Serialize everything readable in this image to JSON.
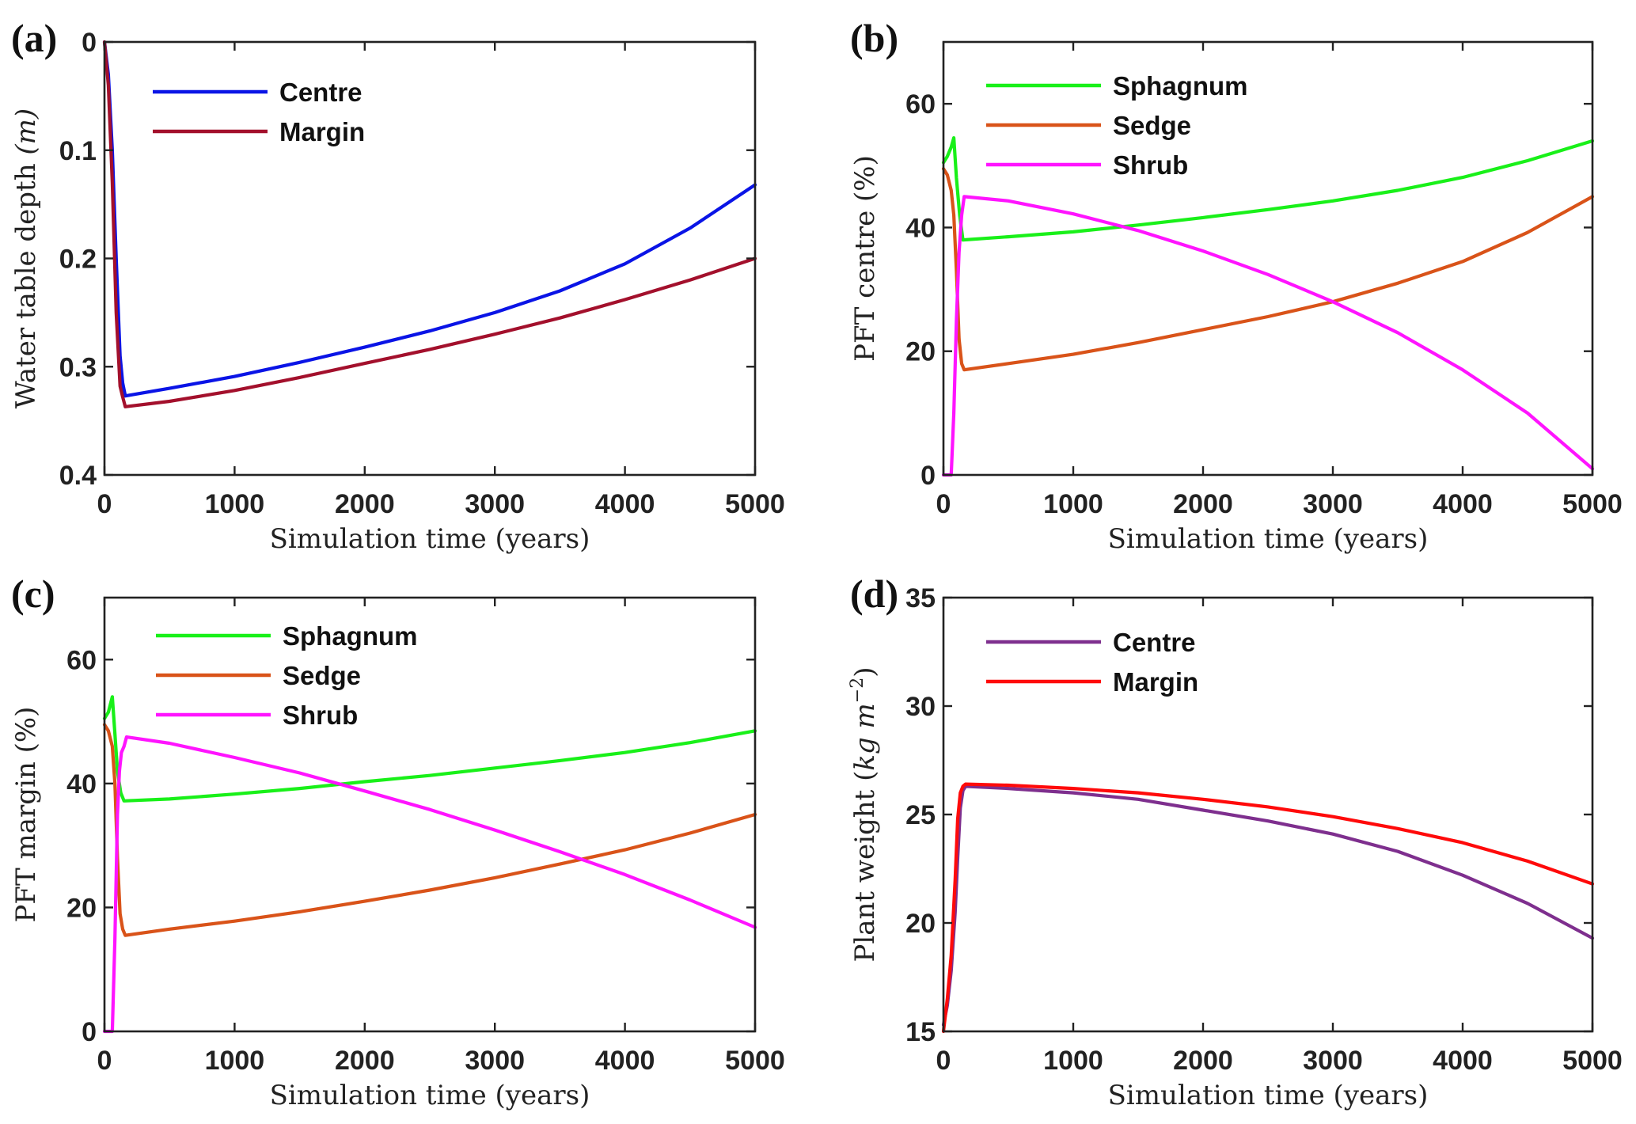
{
  "chart_data": [
    {
      "id": "a",
      "type": "line",
      "panel_label": "(a)",
      "title": "",
      "xlabel": "Simulation time (years)",
      "ylabel": "Water table depth (m)",
      "ylabel_parts": {
        "main": "Water table depth ",
        "unit": "(m)"
      },
      "xlim": [
        0,
        5000
      ],
      "ylim": [
        0,
        0.4
      ],
      "y_reversed": true,
      "xticks": [
        0,
        1000,
        2000,
        3000,
        4000,
        5000
      ],
      "xtick_labels": [
        "0",
        "1000",
        "2000",
        "3000",
        "4000",
        "5000"
      ],
      "yticks": [
        0,
        0.1,
        0.2,
        0.3,
        0.4
      ],
      "ytick_labels": [
        "0",
        "0.1",
        "0.2",
        "0.3",
        "0.4"
      ],
      "grid": false,
      "legend_position": "top-left",
      "series": [
        {
          "name": "Centre",
          "color": "#0a14e6",
          "x": [
            0,
            30,
            60,
            90,
            120,
            140,
            160,
            500,
            1000,
            1500,
            2000,
            2500,
            3000,
            3500,
            4000,
            4500,
            5000
          ],
          "y": [
            0,
            0.03,
            0.1,
            0.2,
            0.29,
            0.315,
            0.327,
            0.32,
            0.309,
            0.296,
            0.282,
            0.267,
            0.25,
            0.23,
            0.205,
            0.172,
            0.132
          ]
        },
        {
          "name": "Margin",
          "color": "#a3102c",
          "x": [
            0,
            30,
            60,
            90,
            120,
            140,
            160,
            500,
            1000,
            1500,
            2000,
            2500,
            3000,
            3500,
            4000,
            4500,
            5000
          ],
          "y": [
            0,
            0.04,
            0.13,
            0.25,
            0.318,
            0.328,
            0.337,
            0.332,
            0.322,
            0.31,
            0.297,
            0.284,
            0.27,
            0.255,
            0.238,
            0.22,
            0.2
          ]
        }
      ]
    },
    {
      "id": "b",
      "type": "line",
      "panel_label": "(b)",
      "title": "",
      "xlabel": "Simulation time (years)",
      "ylabel": "PFT centre (%)",
      "xlim": [
        0,
        5000
      ],
      "ylim": [
        0,
        70
      ],
      "xticks": [
        0,
        1000,
        2000,
        3000,
        4000,
        5000
      ],
      "xtick_labels": [
        "0",
        "1000",
        "2000",
        "3000",
        "4000",
        "5000"
      ],
      "yticks": [
        0,
        20,
        40,
        60
      ],
      "ytick_labels": [
        "0",
        "20",
        "40",
        "60"
      ],
      "grid": false,
      "legend_position": "top-left",
      "series": [
        {
          "name": "Sphagnum",
          "color": "#19f019",
          "x": [
            0,
            30,
            60,
            80,
            100,
            125,
            150,
            500,
            1000,
            1500,
            2000,
            2500,
            3000,
            3500,
            4000,
            4500,
            5000
          ],
          "y": [
            50.5,
            51.5,
            53,
            54.5,
            48,
            42,
            38,
            38.5,
            39.3,
            40.4,
            41.6,
            42.9,
            44.3,
            46,
            48.1,
            50.8,
            54
          ]
        },
        {
          "name": "Sedge",
          "color": "#d95319",
          "x": [
            0,
            30,
            60,
            80,
            100,
            120,
            140,
            160,
            500,
            1000,
            1500,
            2000,
            2500,
            3000,
            3500,
            4000,
            4500,
            5000
          ],
          "y": [
            49.5,
            48.5,
            46,
            42,
            33,
            22,
            18,
            17,
            18,
            19.5,
            21.4,
            23.5,
            25.6,
            28,
            31,
            34.5,
            39.2,
            45
          ]
        },
        {
          "name": "Shrub",
          "color": "#ff14ff",
          "x": [
            0,
            60,
            80,
            100,
            120,
            140,
            160,
            500,
            1000,
            1500,
            2000,
            2500,
            3000,
            3500,
            4000,
            4500,
            5000
          ],
          "y": [
            0,
            0,
            10,
            25,
            36,
            42,
            45,
            44.3,
            42.2,
            39.5,
            36.2,
            32.4,
            28,
            23,
            17,
            10,
            1
          ]
        }
      ]
    },
    {
      "id": "c",
      "type": "line",
      "panel_label": "(c)",
      "title": "",
      "xlabel": "Simulation time (years)",
      "ylabel": "PFT margin (%)",
      "xlim": [
        0,
        5000
      ],
      "ylim": [
        0,
        70
      ],
      "xticks": [
        0,
        1000,
        2000,
        3000,
        4000,
        5000
      ],
      "xtick_labels": [
        "0",
        "1000",
        "2000",
        "3000",
        "4000",
        "5000"
      ],
      "yticks": [
        0,
        20,
        40,
        60
      ],
      "ytick_labels": [
        "0",
        "20",
        "40",
        "60"
      ],
      "grid": false,
      "legend_position": "top-left",
      "series": [
        {
          "name": "Sphagnum",
          "color": "#19f019",
          "x": [
            0,
            30,
            60,
            80,
            100,
            125,
            150,
            500,
            1000,
            1500,
            2000,
            2500,
            3000,
            3500,
            4000,
            4500,
            5000
          ],
          "y": [
            50.5,
            51.5,
            54,
            48,
            42,
            38.5,
            37.2,
            37.5,
            38.3,
            39.2,
            40.3,
            41.3,
            42.5,
            43.7,
            45,
            46.6,
            48.5
          ]
        },
        {
          "name": "Sedge",
          "color": "#d95319",
          "x": [
            0,
            30,
            60,
            80,
            100,
            120,
            140,
            160,
            500,
            1000,
            1500,
            2000,
            2500,
            3000,
            3500,
            4000,
            4500,
            5000
          ],
          "y": [
            49.5,
            48.5,
            46,
            40,
            28,
            19,
            16.5,
            15.5,
            16.5,
            17.8,
            19.3,
            21,
            22.8,
            24.8,
            27,
            29.3,
            32,
            35
          ]
        },
        {
          "name": "Shrub",
          "color": "#ff14ff",
          "x": [
            0,
            60,
            80,
            100,
            115,
            130,
            150,
            170,
            500,
            1000,
            1500,
            2000,
            2500,
            3000,
            3500,
            4000,
            4500,
            5000
          ],
          "y": [
            0,
            0,
            15,
            35,
            42,
            45,
            46,
            47.5,
            46.5,
            44.2,
            41.7,
            38.8,
            35.8,
            32.5,
            29,
            25.3,
            21.2,
            16.8
          ]
        }
      ]
    },
    {
      "id": "d",
      "type": "line",
      "panel_label": "(d)",
      "title": "",
      "xlabel": "Simulation time (years)",
      "ylabel": "Plant weight (kg m^-2)",
      "ylabel_parts": {
        "main": "Plant weight ",
        "unit_open": "(",
        "unit_kg": "kg ",
        "unit_m": "m",
        "unit_sup": "−2",
        "unit_close": ")"
      },
      "xlim": [
        0,
        5000
      ],
      "ylim": [
        15,
        35
      ],
      "xticks": [
        0,
        1000,
        2000,
        3000,
        4000,
        5000
      ],
      "xtick_labels": [
        "0",
        "1000",
        "2000",
        "3000",
        "4000",
        "5000"
      ],
      "yticks": [
        15,
        20,
        25,
        30,
        35
      ],
      "ytick_labels": [
        "15",
        "20",
        "25",
        "30",
        "35"
      ],
      "grid": false,
      "legend_position": "top-left",
      "series": [
        {
          "name": "Centre",
          "color": "#7e2f8e",
          "x": [
            0,
            30,
            60,
            90,
            110,
            130,
            150,
            170,
            500,
            1000,
            1500,
            2000,
            2500,
            3000,
            3500,
            4000,
            4500,
            5000
          ],
          "y": [
            15.3,
            16.2,
            17.8,
            20.5,
            23,
            25.3,
            26.1,
            26.3,
            26.2,
            26.0,
            25.7,
            25.2,
            24.7,
            24.1,
            23.3,
            22.2,
            20.9,
            19.3
          ]
        },
        {
          "name": "Margin",
          "color": "#ff0a0a",
          "x": [
            0,
            30,
            60,
            90,
            110,
            130,
            150,
            170,
            500,
            1000,
            1500,
            2000,
            2500,
            3000,
            3500,
            4000,
            4500,
            5000
          ],
          "y": [
            15.0,
            16.5,
            18.5,
            22,
            24.8,
            26.0,
            26.3,
            26.4,
            26.35,
            26.2,
            26.0,
            25.7,
            25.35,
            24.9,
            24.35,
            23.7,
            22.85,
            21.8
          ]
        }
      ]
    }
  ]
}
